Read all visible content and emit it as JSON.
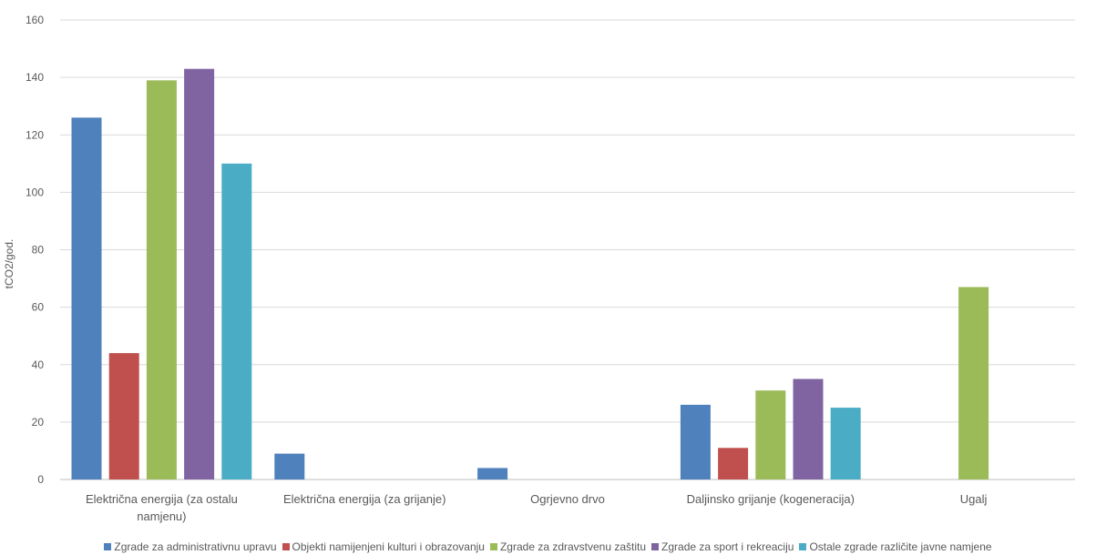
{
  "chart_data": {
    "type": "bar",
    "title": "",
    "xlabel": "",
    "ylabel": "tCO2/god.",
    "ylim": [
      0,
      160
    ],
    "yticks": [
      0,
      20,
      40,
      60,
      80,
      100,
      120,
      140,
      160
    ],
    "grid": true,
    "legend_position": "bottom",
    "categories": [
      [
        "Električna energija (za ostalu",
        "namjenu)"
      ],
      [
        "Električna energija (za grijanje)"
      ],
      [
        "Ogrjevno drvo"
      ],
      [
        "Daljinsko grijanje (kogeneracija)"
      ],
      [
        "Ugalj"
      ]
    ],
    "series": [
      {
        "name": "Zgrade za administrativnu upravu",
        "color": "#4f81bd",
        "values": [
          126,
          9,
          4,
          26,
          0
        ]
      },
      {
        "name": "Objekti namijenjeni kulturi i obrazovanju",
        "color": "#c0504d",
        "values": [
          44,
          0,
          0,
          11,
          0
        ]
      },
      {
        "name": "Zgrade za zdravstvenu zaštitu",
        "color": "#9bbb59",
        "values": [
          139,
          0,
          0,
          31,
          67
        ]
      },
      {
        "name": "Zgrade za sport i rekreaciju",
        "color": "#8064a2",
        "values": [
          143,
          0,
          0,
          35,
          0
        ]
      },
      {
        "name": "Ostale zgrade različite javne namjene",
        "color": "#4bacc6",
        "values": [
          110,
          0,
          0,
          25,
          0
        ]
      }
    ]
  }
}
